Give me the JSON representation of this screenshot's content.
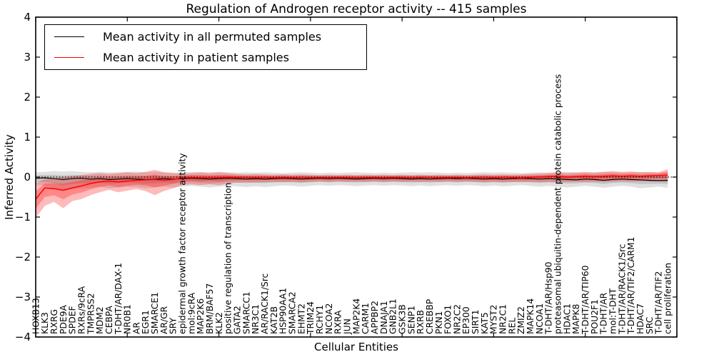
{
  "figure": {
    "title": "Regulation of Androgen receptor activity -- 415 samples",
    "xlabel": "Cellular Entities",
    "ylabel": "Inferred Activity"
  },
  "legend": {
    "items": [
      {
        "label": "Mean activity in all permuted samples",
        "color": "#000000"
      },
      {
        "label": "Mean activity in patient samples",
        "color": "#ff0000"
      }
    ]
  },
  "chart_data": {
    "type": "line",
    "title": "Regulation of Androgen receptor activity -- 415 samples",
    "xlabel": "Cellular Entities",
    "ylabel": "Inferred Activity",
    "ylim": [
      -4,
      4
    ],
    "xlim": [
      0,
      70
    ],
    "grid": false,
    "legend_position": "upper-left",
    "ytick_values": [
      4,
      3,
      2,
      1,
      0,
      -1,
      -2,
      -3,
      -4
    ],
    "ytick_labels": [
      "4",
      "3",
      "2",
      "1",
      "0",
      "−1",
      "−2",
      "−3",
      "−4"
    ],
    "xtick_values": [
      0,
      10,
      20,
      30,
      40,
      50,
      60,
      70
    ],
    "categories": [
      "HOXB13",
      "KLK3",
      "RXRG",
      "PDE9A",
      "SPDEF",
      "RXRs/9cRA",
      "TMPRSS2",
      "MDM2",
      "CEBPA",
      "T-DHT/AR/DAX-1",
      "NR0B1",
      "AR",
      "EGR1",
      "SMARCE1",
      "AR/GR",
      "SRY",
      "epidermal growth factor receptor activity",
      "mol:9cRA",
      "MAP2K6",
      "BRM/BAF57",
      "KLK2",
      "positive regulation of transcription",
      "GATA2",
      "SMARCC1",
      "NR3C1",
      "AR/RACK1/Src",
      "KAT2B",
      "HSP90AA1",
      "SMARCA2",
      "EHMT2",
      "TRIM24",
      "RCHY1",
      "NCOA2",
      "RXRA",
      "JUN",
      "MAP2K4",
      "CARM1",
      "APPBP2",
      "DNAJA1",
      "GNB2L1",
      "GSK3B",
      "SENP1",
      "RXRB",
      "CREBBP",
      "PKN1",
      "FOXO1",
      "NR2C2",
      "EP300",
      "SIRT1",
      "KAT5",
      "MYST2",
      "NR2C1",
      "REL",
      "ZMIZ2",
      "MAPK14",
      "NCOA1",
      "T-DHT/AR/Hsp90",
      "proteasomal ubiquitin-dependent protein catabolic process",
      "HDAC1",
      "MAPK8",
      "T-DHT/AR/TIP60",
      "POU2F1",
      "T-DHT/AR",
      "mol:T-DHT",
      "T-DHT/AR/RACK1/Src",
      "T-DHT/AR/TIF2/CARM1",
      "HDAC7",
      "SRC",
      "T-DHT/AR/TIF2",
      "cell proliferation"
    ],
    "series": [
      {
        "name": "Mean activity in all permuted samples",
        "color": "#000000",
        "width": 1.2,
        "values": [
          -0.03,
          -0.02,
          -0.04,
          -0.06,
          -0.04,
          -0.03,
          -0.05,
          -0.04,
          -0.06,
          -0.05,
          -0.04,
          -0.05,
          -0.06,
          -0.05,
          -0.04,
          -0.05,
          -0.04,
          -0.03,
          -0.04,
          -0.05,
          -0.04,
          -0.03,
          -0.04,
          -0.05,
          -0.04,
          -0.05,
          -0.04,
          -0.03,
          -0.04,
          -0.05,
          -0.04,
          -0.03,
          -0.04,
          -0.03,
          -0.04,
          -0.05,
          -0.04,
          -0.03,
          -0.04,
          -0.03,
          -0.04,
          -0.05,
          -0.04,
          -0.05,
          -0.04,
          -0.03,
          -0.04,
          -0.03,
          -0.04,
          -0.05,
          -0.04,
          -0.05,
          -0.04,
          -0.03,
          -0.04,
          -0.05,
          -0.04,
          -0.05,
          -0.06,
          -0.07,
          -0.05,
          -0.06,
          -0.08,
          -0.06,
          -0.05,
          -0.06,
          -0.07,
          -0.08,
          -0.09,
          -0.08
        ]
      },
      {
        "name": "Mean activity in patient samples",
        "color": "#ff0000",
        "width": 1.5,
        "values": [
          -0.55,
          -0.27,
          -0.29,
          -0.33,
          -0.27,
          -0.22,
          -0.16,
          -0.12,
          -0.1,
          -0.12,
          -0.1,
          -0.08,
          -0.07,
          -0.06,
          -0.08,
          -0.06,
          -0.02,
          -0.01,
          -0.02,
          -0.01,
          -0.02,
          0.0,
          -0.01,
          -0.01,
          -0.02,
          -0.01,
          -0.02,
          -0.01,
          -0.02,
          -0.01,
          -0.02,
          -0.01,
          -0.02,
          -0.01,
          -0.01,
          -0.02,
          -0.01,
          -0.01,
          -0.02,
          -0.01,
          -0.01,
          -0.02,
          -0.01,
          -0.01,
          -0.02,
          -0.01,
          -0.01,
          -0.02,
          -0.01,
          -0.01,
          -0.02,
          -0.01,
          -0.01,
          -0.02,
          -0.01,
          0.0,
          0.01,
          0.02,
          0.0,
          0.01,
          0.02,
          0.01,
          0.02,
          0.03,
          0.02,
          0.03,
          0.02,
          0.03,
          0.04,
          0.05
        ]
      }
    ],
    "bands": [
      {
        "name": "permuted-samples-spread",
        "color": "#000000",
        "opacity": 0.12,
        "ref_series": 0,
        "high": [
          0.12,
          0.13,
          0.15,
          0.14,
          0.15,
          0.13,
          0.12,
          0.13,
          0.12,
          0.12,
          0.13,
          0.14,
          0.12,
          0.13,
          0.12,
          0.11,
          0.12,
          0.13,
          0.12,
          0.12,
          0.13,
          0.12,
          0.11,
          0.12,
          0.11,
          0.12,
          0.11,
          0.1,
          0.11,
          0.12,
          0.11,
          0.1,
          0.11,
          0.1,
          0.11,
          0.12,
          0.11,
          0.1,
          0.11,
          0.1,
          0.11,
          0.12,
          0.11,
          0.12,
          0.11,
          0.1,
          0.11,
          0.1,
          0.11,
          0.12,
          0.11,
          0.12,
          0.11,
          0.1,
          0.11,
          0.12,
          0.11,
          0.12,
          0.13,
          0.12,
          0.11,
          0.12,
          0.13,
          0.12,
          0.11,
          0.12,
          0.13,
          0.12,
          0.11,
          0.13
        ],
        "low": [
          -0.2,
          -0.22,
          -0.28,
          -0.35,
          -0.3,
          -0.28,
          -0.26,
          -0.24,
          -0.28,
          -0.26,
          -0.24,
          -0.25,
          -0.28,
          -0.26,
          -0.24,
          -0.26,
          -0.24,
          -0.22,
          -0.24,
          -0.26,
          -0.24,
          -0.22,
          -0.23,
          -0.25,
          -0.23,
          -0.25,
          -0.23,
          -0.21,
          -0.22,
          -0.24,
          -0.22,
          -0.2,
          -0.22,
          -0.2,
          -0.21,
          -0.23,
          -0.21,
          -0.2,
          -0.22,
          -0.2,
          -0.21,
          -0.23,
          -0.21,
          -0.23,
          -0.21,
          -0.2,
          -0.22,
          -0.2,
          -0.21,
          -0.23,
          -0.21,
          -0.23,
          -0.22,
          -0.2,
          -0.22,
          -0.24,
          -0.22,
          -0.24,
          -0.26,
          -0.24,
          -0.22,
          -0.24,
          -0.27,
          -0.24,
          -0.22,
          -0.24,
          -0.28,
          -0.26,
          -0.24,
          -0.27
        ]
      },
      {
        "name": "patient-samples-spread",
        "color": "#ff0000",
        "opacity": 0.27,
        "ref_series": 1,
        "high": [
          -0.15,
          -0.05,
          -0.03,
          0.0,
          0.02,
          0.05,
          0.08,
          0.1,
          0.08,
          0.1,
          0.12,
          0.1,
          0.13,
          0.18,
          0.12,
          0.1,
          0.08,
          0.1,
          0.12,
          0.1,
          0.12,
          0.1,
          0.08,
          0.07,
          0.08,
          0.07,
          0.06,
          0.07,
          0.06,
          0.07,
          0.06,
          0.05,
          0.06,
          0.05,
          0.06,
          0.05,
          0.06,
          0.05,
          0.06,
          0.05,
          0.06,
          0.05,
          0.06,
          0.05,
          0.06,
          0.05,
          0.06,
          0.05,
          0.06,
          0.07,
          0.06,
          0.07,
          0.06,
          0.07,
          0.08,
          0.09,
          0.1,
          0.12,
          0.1,
          0.11,
          0.13,
          0.11,
          0.13,
          0.15,
          0.13,
          0.14,
          0.12,
          0.13,
          0.12,
          0.2
        ],
        "low": [
          -1.02,
          -0.72,
          -0.62,
          -0.78,
          -0.6,
          -0.55,
          -0.45,
          -0.38,
          -0.32,
          -0.38,
          -0.34,
          -0.3,
          -0.35,
          -0.45,
          -0.35,
          -0.28,
          -0.2,
          -0.18,
          -0.2,
          -0.18,
          -0.2,
          -0.16,
          -0.14,
          -0.13,
          -0.14,
          -0.13,
          -0.12,
          -0.13,
          -0.12,
          -0.13,
          -0.12,
          -0.11,
          -0.12,
          -0.11,
          -0.12,
          -0.11,
          -0.12,
          -0.11,
          -0.12,
          -0.11,
          -0.12,
          -0.11,
          -0.12,
          -0.11,
          -0.12,
          -0.11,
          -0.12,
          -0.11,
          -0.12,
          -0.13,
          -0.12,
          -0.13,
          -0.12,
          -0.13,
          -0.12,
          -0.13,
          -0.12,
          -0.13,
          -0.12,
          -0.11,
          -0.12,
          -0.11,
          -0.12,
          -0.11,
          -0.1,
          -0.11,
          -0.1,
          -0.11,
          -0.1,
          -0.12
        ]
      }
    ],
    "band_inner_scale": 0.5,
    "zero_line": {
      "y": 0,
      "style": "dotted",
      "color": "#000000"
    }
  }
}
